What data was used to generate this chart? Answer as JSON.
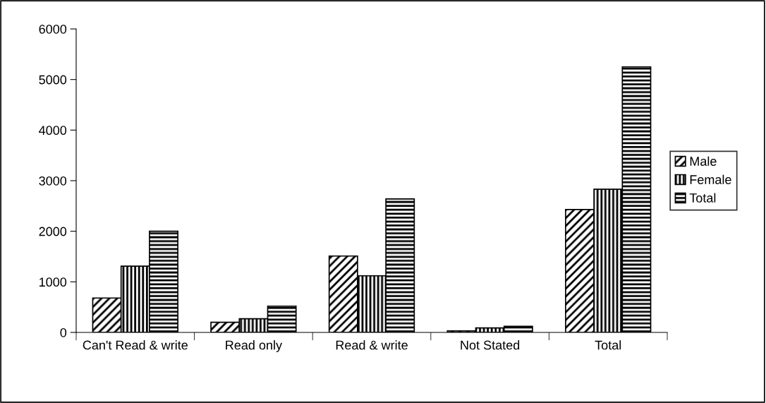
{
  "chart_data": {
    "type": "bar",
    "categories": [
      "Can't Read & write",
      "Read only",
      "Read & write",
      "Not Stated",
      "Total"
    ],
    "series": [
      {
        "name": "Male",
        "color": "#000000",
        "values": [
          680,
          200,
          1510,
          30,
          2430
        ]
      },
      {
        "name": "Female",
        "color": "#000000",
        "values": [
          1310,
          270,
          1120,
          90,
          2830
        ]
      },
      {
        "name": "Total",
        "color": "#000000",
        "values": [
          2000,
          520,
          2640,
          120,
          5250
        ]
      }
    ],
    "ylim": [
      0,
      6000
    ],
    "yticks": [
      0,
      1000,
      2000,
      3000,
      4000,
      5000,
      6000
    ],
    "grid": false,
    "legend": "right"
  }
}
